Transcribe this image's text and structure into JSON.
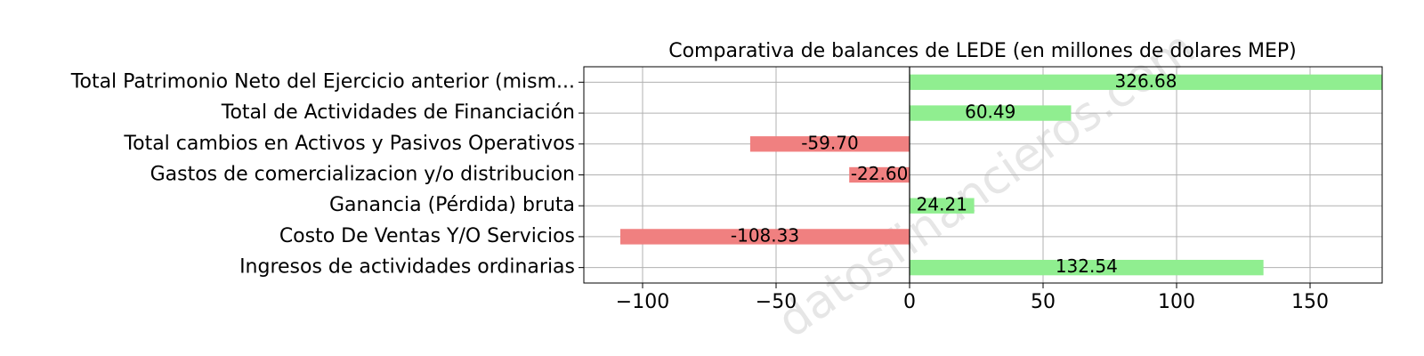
{
  "chart_data": {
    "type": "barh",
    "title": "Comparativa de balances de LEDE (en millones de dolares MEP)",
    "watermark": "datosfinancieros.com",
    "categories": [
      "Total Patrimonio Neto del Ejercicio anterior (mism...",
      "Total de Actividades de Financiación",
      "Total cambios en Activos y Pasivos Operativos",
      "Gastos de comercializacion y/o distribucion",
      "Ganancia (Pérdida) bruta ",
      "Costo De Ventas Y/O Servicios",
      "Ingresos de actividades ordinarias "
    ],
    "values": [
      326.68,
      60.49,
      -59.7,
      -22.6,
      24.21,
      -108.33,
      132.54
    ],
    "value_labels": [
      "326.68",
      "60.49",
      "-59.70",
      "-22.60",
      "24.21",
      "-108.33",
      "132.54"
    ],
    "colors": [
      "#90ee90",
      "#90ee90",
      "#f08080",
      "#f08080",
      "#90ee90",
      "#f08080",
      "#90ee90"
    ],
    "xlim": [
      -122,
      177
    ],
    "xticks": [
      {
        "value": -100,
        "label": "−100"
      },
      {
        "value": -50,
        "label": "−50"
      },
      0,
      50,
      100,
      150
    ],
    "grid": true
  }
}
